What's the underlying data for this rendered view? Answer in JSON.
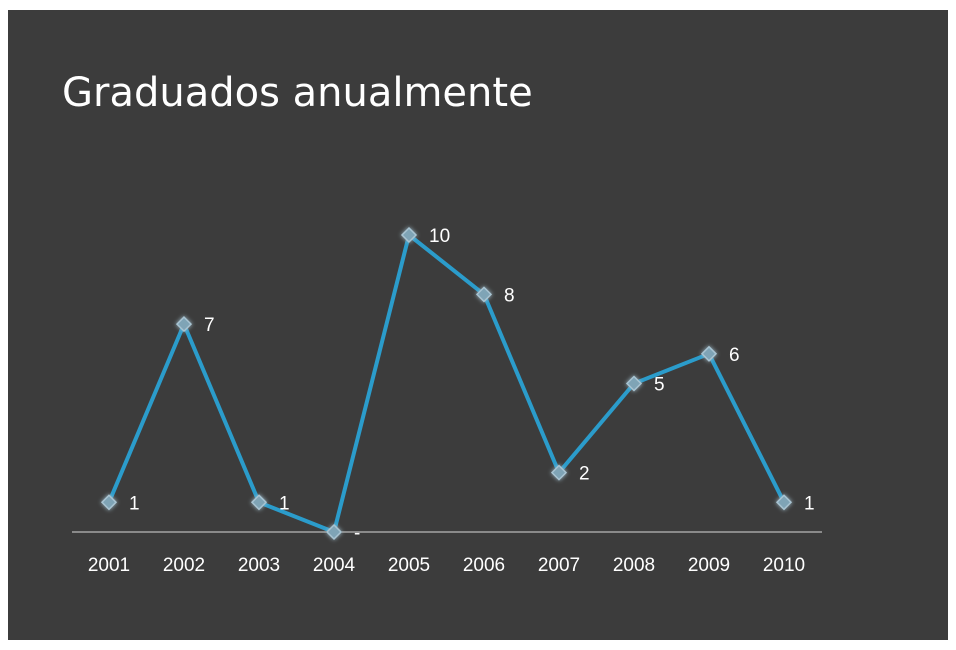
{
  "chart_data": {
    "type": "line",
    "title": "Graduados anualmente",
    "categories": [
      "2001",
      "2002",
      "2003",
      "2004",
      "2005",
      "2006",
      "2007",
      "2008",
      "2009",
      "2010"
    ],
    "values": [
      1,
      7,
      1,
      0,
      10,
      8,
      2,
      5,
      6,
      1
    ],
    "value_labels": [
      "1",
      "7",
      "1",
      "-",
      "10",
      "8",
      "2",
      "5",
      "6",
      "1"
    ],
    "color": "#2b9ccb"
  }
}
